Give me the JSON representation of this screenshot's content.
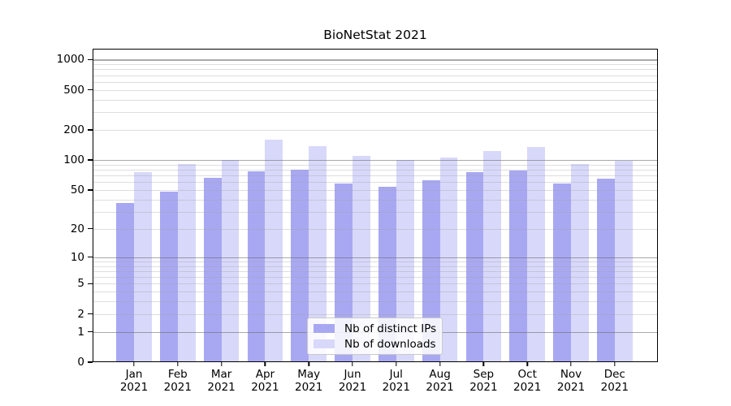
{
  "chart_data": {
    "type": "bar",
    "title": "BioNetStat 2021",
    "categories": [
      "Jan 2021",
      "Feb 2021",
      "Mar 2021",
      "Apr 2021",
      "May 2021",
      "Jun 2021",
      "Jul 2021",
      "Aug 2021",
      "Sep 2021",
      "Oct 2021",
      "Nov 2021",
      "Dec 2021"
    ],
    "series": [
      {
        "name": "Nb of distinct IPs",
        "color": "#a8a8f2",
        "values": [
          37,
          48,
          66,
          77,
          80,
          58,
          54,
          63,
          76,
          78,
          58,
          65
        ]
      },
      {
        "name": "Nb of downloads",
        "color": "#d8d8fa",
        "values": [
          75,
          92,
          101,
          160,
          137,
          110,
          100,
          106,
          123,
          135,
          92,
          98
        ]
      }
    ],
    "xlabel": "",
    "ylabel": "",
    "yscale": "log1p",
    "yticks": [
      1000,
      500,
      200,
      100,
      50,
      20,
      10,
      5,
      2,
      1,
      0
    ],
    "ylim": [
      0,
      1281
    ],
    "grid": true,
    "legend_position": "inside lower-center"
  },
  "colors": {
    "background": "#ffffff",
    "spine": "#000000",
    "major_grid": "rgba(100,100,100,0.55)",
    "minor_grid": "rgba(160,160,160,0.35)",
    "legend_border": "#c9c9c9",
    "legend_background": "rgba(255,255,255,0.85)"
  }
}
